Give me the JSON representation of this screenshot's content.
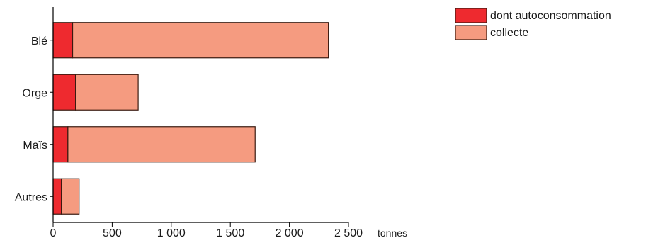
{
  "chart_data": {
    "type": "bar",
    "orientation": "horizontal",
    "stacked": true,
    "categories": [
      "Blé",
      "Orge",
      "Maïs",
      "Autres"
    ],
    "series": [
      {
        "name": "dont autoconsommation",
        "values": [
          165,
          190,
          125,
          70
        ],
        "color": "#ee2a2f"
      },
      {
        "name": "collecte",
        "values": [
          2165,
          530,
          1585,
          150
        ],
        "color": "#f59b80"
      }
    ],
    "xlim": [
      0,
      2500
    ],
    "x_ticks": [
      0,
      500,
      1000,
      1500,
      2000,
      2500
    ],
    "x_tick_labels": [
      "0",
      "500",
      "1 000",
      "1 500",
      "2 000",
      "2 500"
    ],
    "xlabel": "tonnes",
    "legend_position": "top-right",
    "grid": false
  }
}
